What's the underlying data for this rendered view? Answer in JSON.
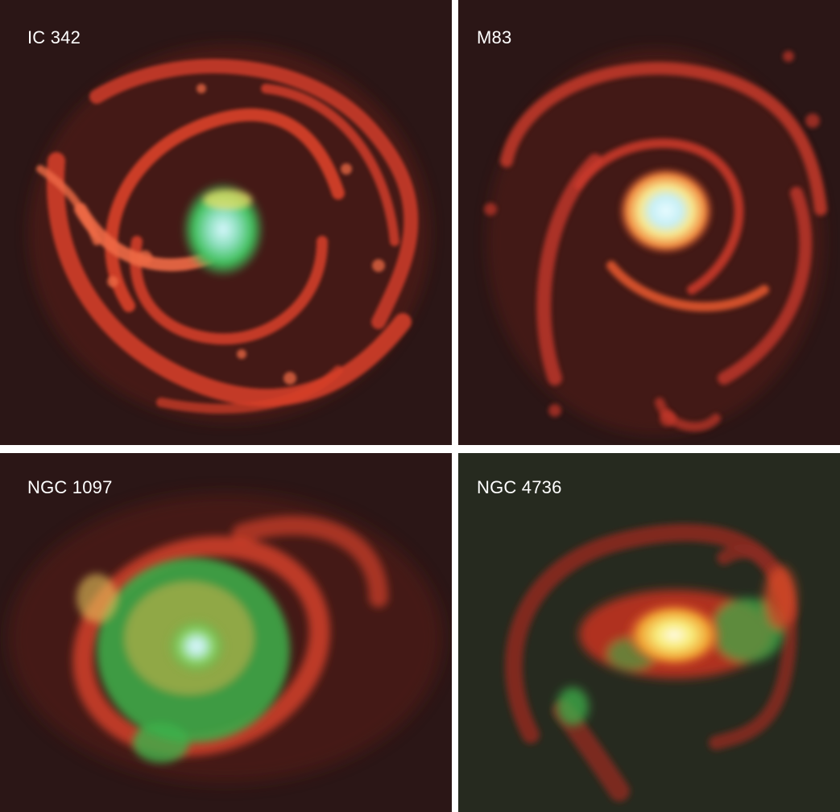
{
  "figure": {
    "panels": [
      {
        "label": "IC 342",
        "background": "#2b1616"
      },
      {
        "label": "M83",
        "background": "#2b1616"
      },
      {
        "label": "NGC 1097",
        "background": "#2b1616"
      },
      {
        "label": "NGC 4736",
        "background": "#262a1f"
      }
    ],
    "colors": {
      "separator": "#ffffff",
      "arm_red": "#e2432a",
      "arm_bright": "#ff7a50",
      "core_green": "#3fc24a",
      "core_yellow": "#f6e56a",
      "core_cyan": "#c9f2ff"
    }
  }
}
